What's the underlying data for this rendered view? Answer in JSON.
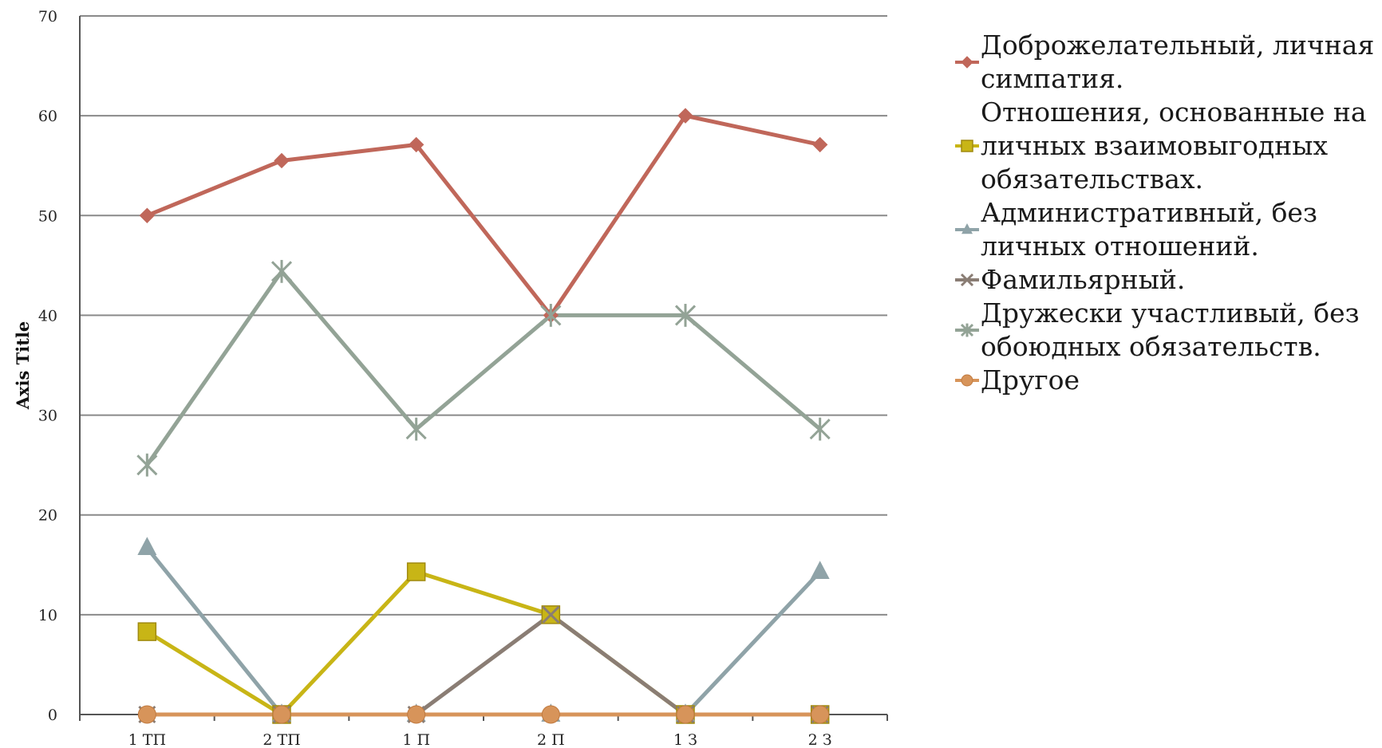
{
  "chart_data": {
    "type": "line",
    "categories": [
      "1 ТП",
      "2 ТП",
      "1 П",
      "2 П",
      "1 З",
      "2 З"
    ],
    "ylabel": "Axis Title",
    "ylim": [
      0,
      70
    ],
    "yticks": [
      0,
      10,
      20,
      30,
      40,
      50,
      60,
      70
    ],
    "grid": true,
    "legend_position": "right",
    "series": [
      {
        "name": "Доброжелательный, личная симпатия.",
        "values": [
          50,
          55.5,
          57.1,
          40,
          60,
          57.1
        ],
        "color": "#c0675a",
        "marker": "diamond"
      },
      {
        "name": "Отношения, основанные на личных взаимовыгодных обязательствах.",
        "values": [
          8.3,
          0,
          14.3,
          10,
          0,
          0
        ],
        "color": "#c8b516",
        "marker": "square"
      },
      {
        "name": "Административный, без личных отношений.",
        "values": [
          16.7,
          0,
          0,
          0,
          0,
          14.3
        ],
        "color": "#8fa3a8",
        "marker": "triangle"
      },
      {
        "name": "Фамильярный.",
        "values": [
          0,
          0,
          0,
          10,
          0,
          0
        ],
        "color": "#8a7d74",
        "marker": "x"
      },
      {
        "name": "Дружески участливый, без обоюдных обязательств.",
        "values": [
          25,
          44.4,
          28.6,
          40,
          40,
          28.6
        ],
        "color": "#93a396",
        "marker": "star"
      },
      {
        "name": "Другое",
        "values": [
          0,
          0,
          0,
          0,
          0,
          0
        ],
        "color": "#d7945a",
        "marker": "circle"
      }
    ]
  }
}
